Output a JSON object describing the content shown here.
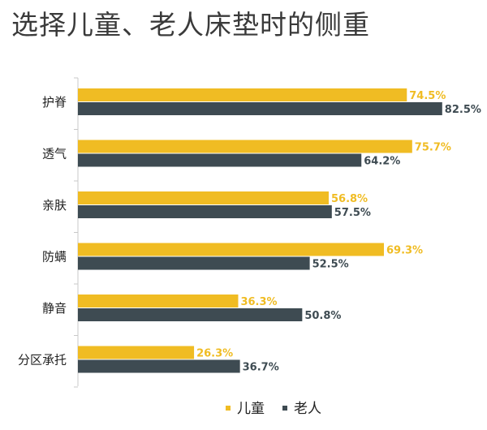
{
  "colors": {
    "child": "#f0bc23",
    "elder": "#3e4b52",
    "axis": "#c8c8c8"
  },
  "chart_data": {
    "type": "bar",
    "orientation": "horizontal",
    "title": "选择儿童、老人床垫时的侧重",
    "categories": [
      "护脊",
      "透气",
      "亲肤",
      "防螨",
      "静音",
      "分区承托"
    ],
    "unit": "%",
    "xlim": [
      0,
      100
    ],
    "series": [
      {
        "name": "儿童",
        "values": [
          74.5,
          75.7,
          56.8,
          69.3,
          36.3,
          26.3
        ],
        "labels": [
          "74.5%",
          "75.7%",
          "56.8%",
          "69.3%",
          "36.3%",
          "26.3%"
        ]
      },
      {
        "name": "老人",
        "values": [
          82.5,
          64.2,
          57.5,
          52.5,
          50.8,
          36.7
        ],
        "labels": [
          "82.5%",
          "64.2%",
          "57.5%",
          "52.5%",
          "50.8%",
          "36.7%"
        ]
      }
    ],
    "grid": false,
    "legend": "bottom"
  }
}
